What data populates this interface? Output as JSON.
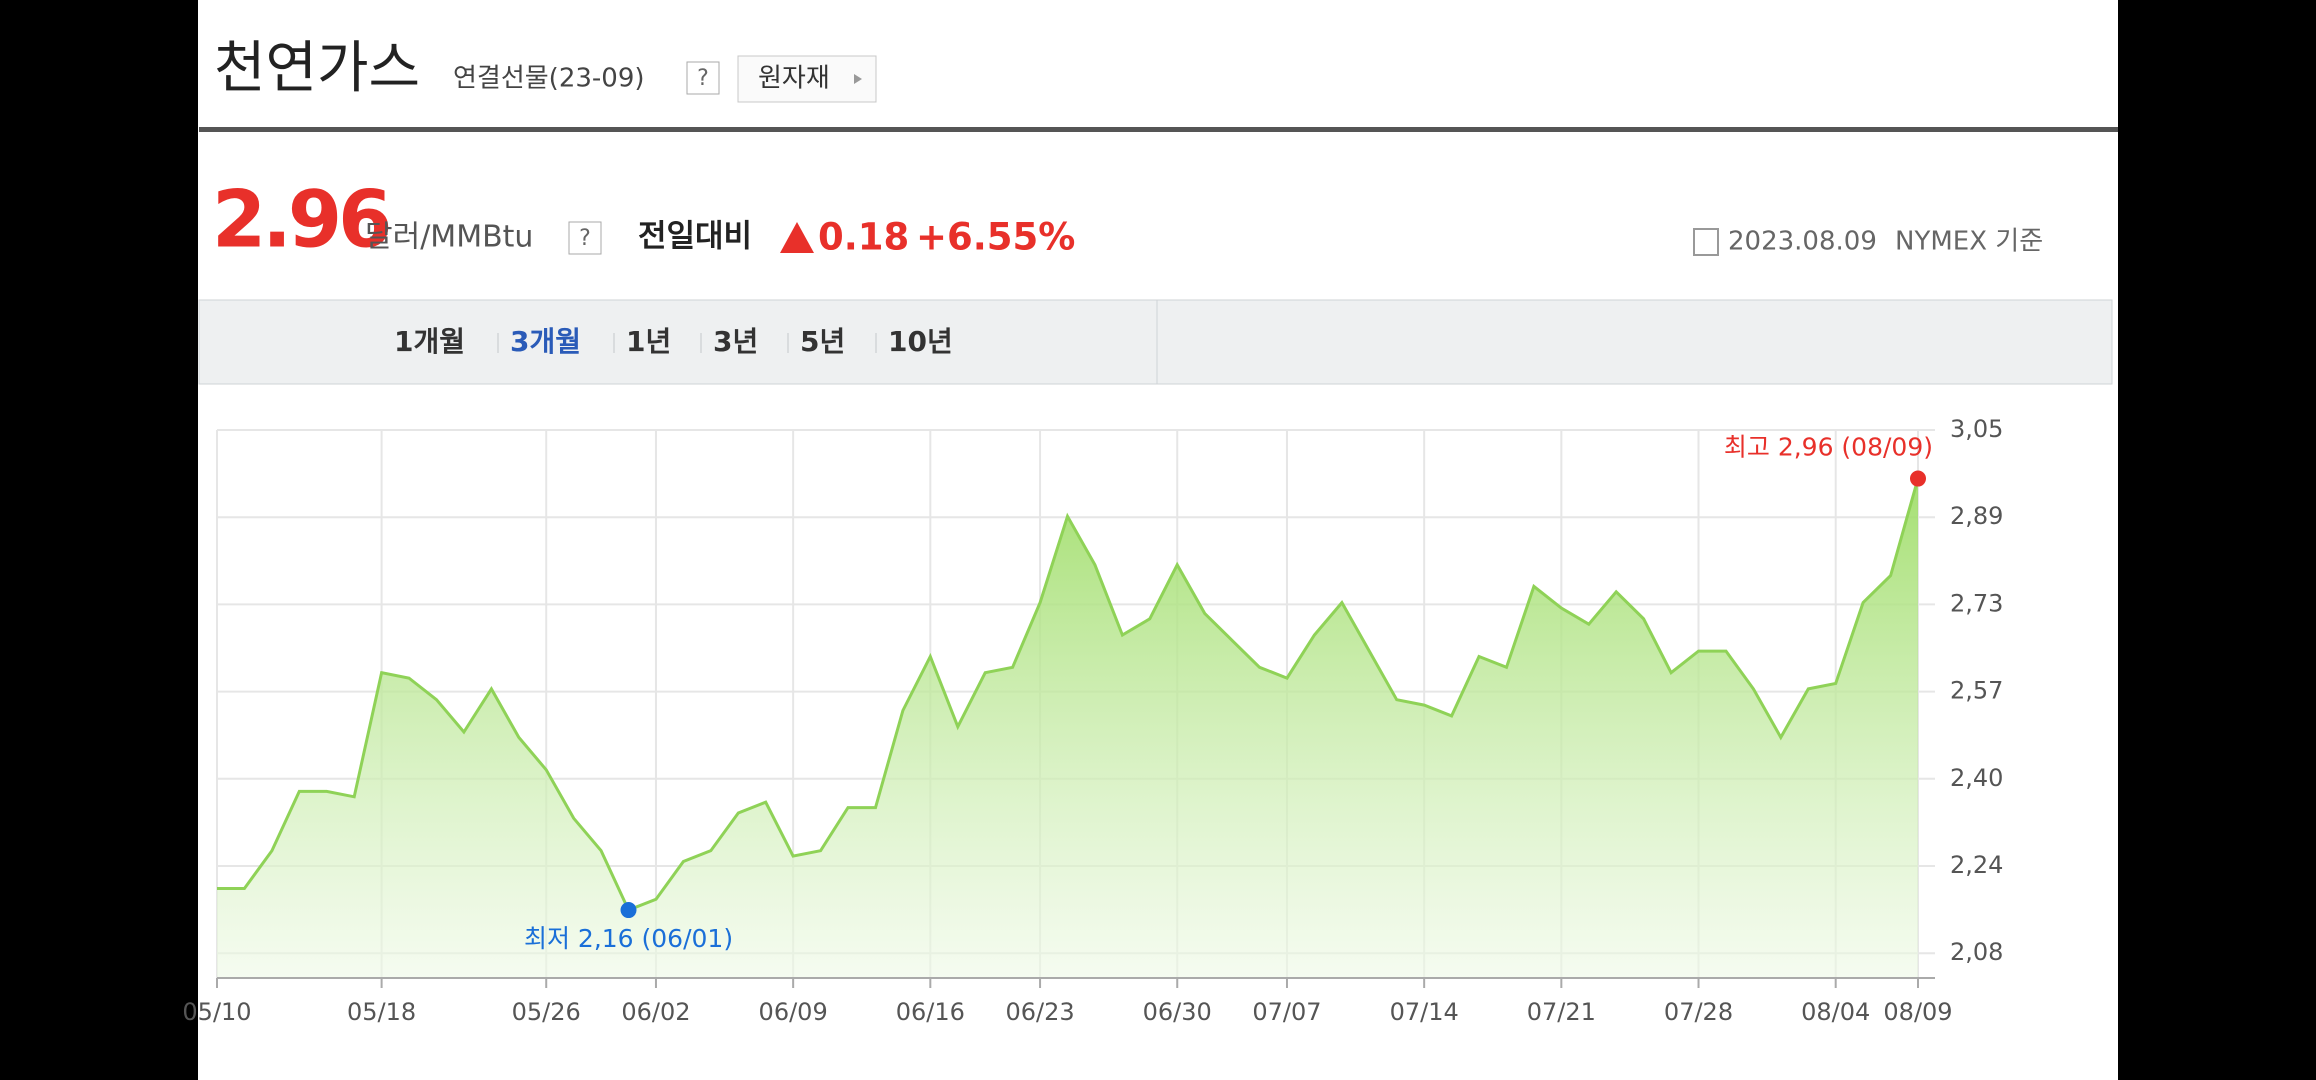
{
  "header": {
    "title": "천연가스",
    "subtitle": "연결선물(23-09)",
    "help": "?",
    "category_button": "원자재"
  },
  "price": {
    "value": "2.96",
    "unit": "달러/MMBtu",
    "help": "?",
    "change_label": "전일대비",
    "change": "0.18",
    "change_percent": "+6.55%",
    "date": "2023.08.09",
    "exchange": "NYMEX 기준"
  },
  "tabs": [
    "1개월",
    "3개월",
    "1년",
    "3년",
    "5년",
    "10년"
  ],
  "chart_data": {
    "type": "area",
    "categories": [
      "05/10",
      null,
      null,
      null,
      null,
      null,
      "05/18",
      null,
      null,
      null,
      null,
      null,
      "05/26",
      null,
      null,
      null,
      "06/02",
      null,
      null,
      null,
      null,
      "06/09",
      null,
      null,
      null,
      null,
      "06/16",
      null,
      null,
      null,
      "06/23",
      null,
      null,
      null,
      null,
      "06/30",
      null,
      null,
      null,
      "07/07",
      null,
      null,
      null,
      null,
      "07/14",
      null,
      null,
      null,
      null,
      "07/21",
      null,
      null,
      null,
      null,
      "07/28",
      null,
      null,
      null,
      null,
      "08/04",
      null,
      null,
      "08/09"
    ],
    "values": [
      2.2,
      2.2,
      2.27,
      2.38,
      2.38,
      2.37,
      2.6,
      2.59,
      2.55,
      2.49,
      2.57,
      2.48,
      2.42,
      2.33,
      2.27,
      2.16,
      2.18,
      2.25,
      2.27,
      2.34,
      2.36,
      2.26,
      2.27,
      2.35,
      2.35,
      2.53,
      2.63,
      2.5,
      2.6,
      2.61,
      2.73,
      2.89,
      2.8,
      2.67,
      2.7,
      2.8,
      2.71,
      2.66,
      2.61,
      2.59,
      2.67,
      2.73,
      2.64,
      2.55,
      2.54,
      2.52,
      2.63,
      2.61,
      2.76,
      2.72,
      2.69,
      2.75,
      2.7,
      2.6,
      2.64,
      2.64,
      2.57,
      2.48,
      2.57,
      2.58,
      2.73,
      2.78,
      2.96
    ],
    "color": "#8fd257",
    "ylim": [
      2.034,
      3.05
    ],
    "yticks": [
      {
        "value": 3.05,
        "label": "3,05"
      },
      {
        "value": 2.8883,
        "label": "2,89"
      },
      {
        "value": 2.7267,
        "label": "2,73"
      },
      {
        "value": 2.565,
        "label": "2,57"
      },
      {
        "value": 2.4033,
        "label": "2,40"
      },
      {
        "value": 2.2417,
        "label": "2,24"
      },
      {
        "value": 2.08,
        "label": "2,08"
      }
    ],
    "grid": true,
    "annotations": [
      {
        "text": "최고 2,96 (08/09)",
        "color": "#e8302a"
      },
      {
        "text": "최저 2,16 (06/01)",
        "color": "#1a6fd8"
      }
    ]
  }
}
